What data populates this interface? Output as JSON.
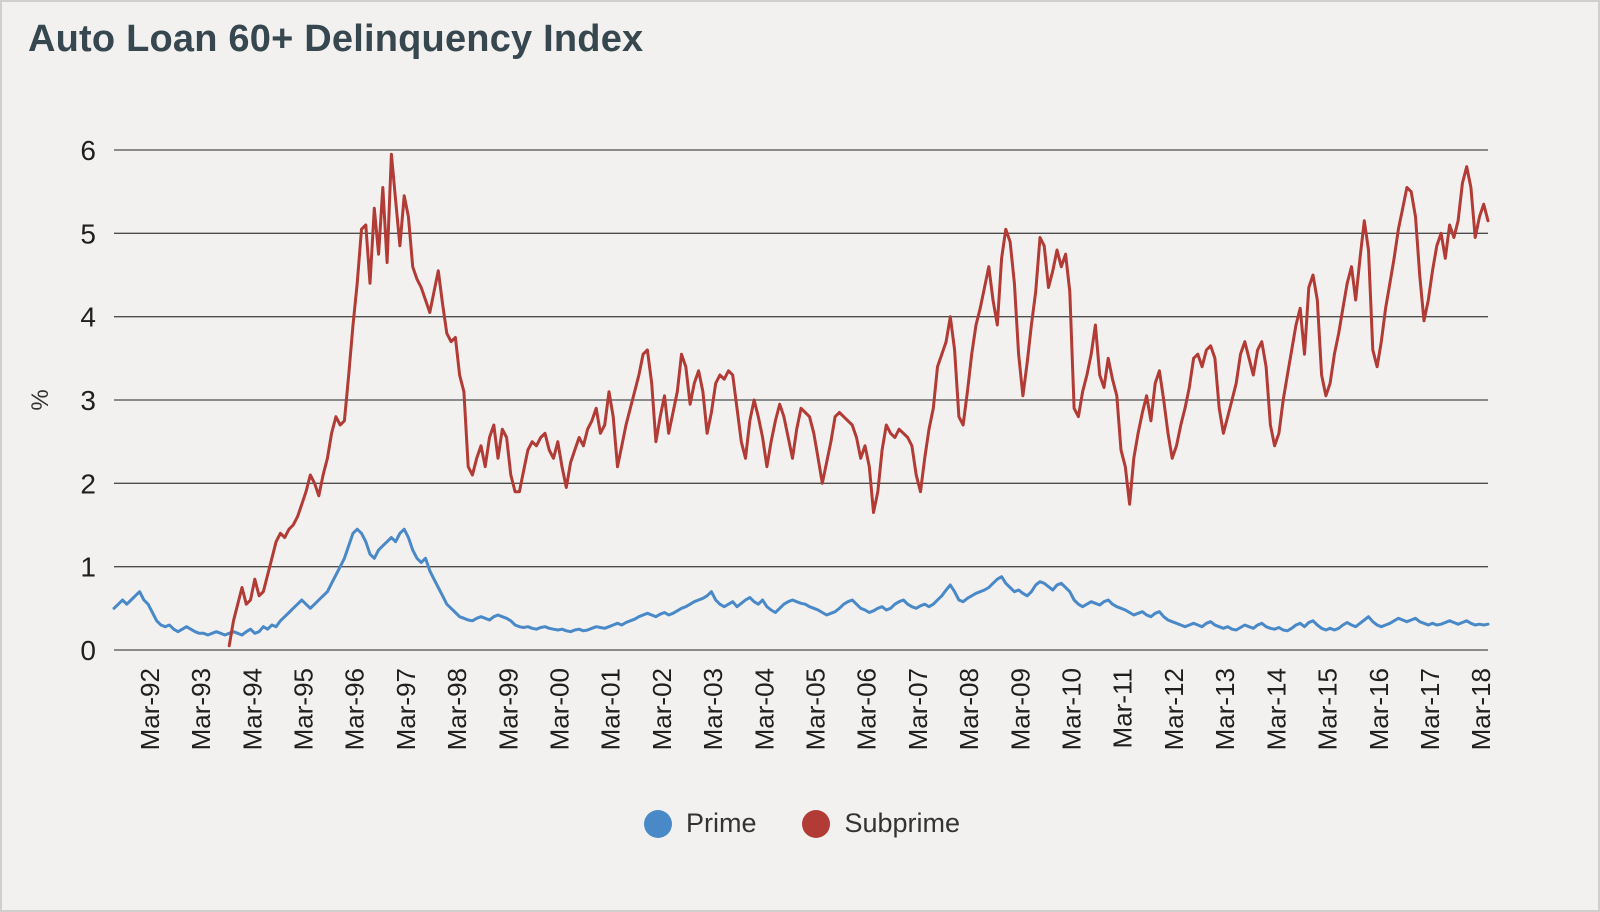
{
  "chart": {
    "title": "Auto Loan 60+ Delinquency Index",
    "ylabel": "%"
  },
  "colors": {
    "prime": "#4a89c8",
    "subprime": "#b23b35",
    "gridline": "#4d4d4d",
    "tick_text": "#1f1f1f",
    "background": "#f2f1ef"
  },
  "chart_data": {
    "type": "line",
    "title": "Auto Loan 60+ Delinquency Index",
    "xlabel": "",
    "ylabel": "%",
    "ylim": [
      0,
      6
    ],
    "y_ticks": [
      0,
      1,
      2,
      3,
      4,
      5,
      6
    ],
    "grid": "horizontal",
    "legend_position": "bottom",
    "x_tick_labels": [
      "Mar-92",
      "Mar-93",
      "Mar-94",
      "Mar-95",
      "Mar-96",
      "Mar-97",
      "Mar-98",
      "Mar-99",
      "Mar-00",
      "Mar-01",
      "Mar-02",
      "Mar-03",
      "Mar-04",
      "Mar-05",
      "Mar-06",
      "Mar-07",
      "Mar-08",
      "Mar-09",
      "Mar-10",
      "Mar-11",
      "Mar-12",
      "Mar-13",
      "Mar-14",
      "Mar-15",
      "Mar-16",
      "Mar-17",
      "Mar-18"
    ],
    "x_start": 1991.5,
    "x_step": 0.0833333,
    "series": [
      {
        "name": "Prime",
        "color": "#4a89c8",
        "values": [
          0.5,
          0.55,
          0.6,
          0.55,
          0.6,
          0.65,
          0.7,
          0.6,
          0.55,
          0.45,
          0.35,
          0.3,
          0.28,
          0.3,
          0.25,
          0.22,
          0.25,
          0.28,
          0.25,
          0.22,
          0.2,
          0.2,
          0.18,
          0.2,
          0.22,
          0.2,
          0.18,
          0.2,
          0.22,
          0.2,
          0.18,
          0.22,
          0.25,
          0.2,
          0.22,
          0.28,
          0.25,
          0.3,
          0.28,
          0.35,
          0.4,
          0.45,
          0.5,
          0.55,
          0.6,
          0.55,
          0.5,
          0.55,
          0.6,
          0.65,
          0.7,
          0.8,
          0.9,
          1.0,
          1.1,
          1.25,
          1.4,
          1.45,
          1.4,
          1.3,
          1.15,
          1.1,
          1.2,
          1.25,
          1.3,
          1.35,
          1.3,
          1.4,
          1.45,
          1.35,
          1.2,
          1.1,
          1.05,
          1.1,
          0.95,
          0.85,
          0.75,
          0.65,
          0.55,
          0.5,
          0.45,
          0.4,
          0.38,
          0.36,
          0.35,
          0.38,
          0.4,
          0.38,
          0.36,
          0.4,
          0.42,
          0.4,
          0.38,
          0.35,
          0.3,
          0.28,
          0.27,
          0.28,
          0.26,
          0.25,
          0.27,
          0.28,
          0.26,
          0.25,
          0.24,
          0.25,
          0.23,
          0.22,
          0.24,
          0.25,
          0.23,
          0.24,
          0.26,
          0.28,
          0.27,
          0.26,
          0.28,
          0.3,
          0.32,
          0.3,
          0.33,
          0.35,
          0.37,
          0.4,
          0.42,
          0.44,
          0.42,
          0.4,
          0.43,
          0.45,
          0.42,
          0.44,
          0.47,
          0.5,
          0.52,
          0.55,
          0.58,
          0.6,
          0.62,
          0.65,
          0.7,
          0.6,
          0.55,
          0.52,
          0.55,
          0.58,
          0.52,
          0.56,
          0.6,
          0.63,
          0.58,
          0.55,
          0.6,
          0.52,
          0.48,
          0.45,
          0.5,
          0.55,
          0.58,
          0.6,
          0.58,
          0.56,
          0.55,
          0.52,
          0.5,
          0.48,
          0.45,
          0.42,
          0.44,
          0.46,
          0.5,
          0.55,
          0.58,
          0.6,
          0.55,
          0.5,
          0.48,
          0.45,
          0.47,
          0.5,
          0.52,
          0.48,
          0.5,
          0.55,
          0.58,
          0.6,
          0.55,
          0.52,
          0.5,
          0.53,
          0.55,
          0.52,
          0.55,
          0.6,
          0.65,
          0.72,
          0.78,
          0.7,
          0.6,
          0.58,
          0.62,
          0.65,
          0.68,
          0.7,
          0.72,
          0.75,
          0.8,
          0.85,
          0.88,
          0.8,
          0.75,
          0.7,
          0.72,
          0.68,
          0.65,
          0.7,
          0.78,
          0.82,
          0.8,
          0.76,
          0.72,
          0.78,
          0.8,
          0.75,
          0.7,
          0.6,
          0.55,
          0.52,
          0.55,
          0.58,
          0.56,
          0.54,
          0.58,
          0.6,
          0.55,
          0.52,
          0.5,
          0.48,
          0.45,
          0.42,
          0.44,
          0.46,
          0.42,
          0.4,
          0.44,
          0.46,
          0.4,
          0.36,
          0.34,
          0.32,
          0.3,
          0.28,
          0.3,
          0.32,
          0.3,
          0.28,
          0.32,
          0.34,
          0.3,
          0.28,
          0.26,
          0.28,
          0.25,
          0.24,
          0.27,
          0.3,
          0.28,
          0.26,
          0.3,
          0.32,
          0.28,
          0.26,
          0.25,
          0.27,
          0.24,
          0.23,
          0.26,
          0.3,
          0.32,
          0.28,
          0.33,
          0.35,
          0.3,
          0.26,
          0.24,
          0.26,
          0.24,
          0.26,
          0.3,
          0.33,
          0.3,
          0.28,
          0.32,
          0.36,
          0.4,
          0.34,
          0.3,
          0.28,
          0.3,
          0.32,
          0.35,
          0.38,
          0.36,
          0.34,
          0.36,
          0.38,
          0.34,
          0.32,
          0.3,
          0.32,
          0.3,
          0.31,
          0.33,
          0.35,
          0.33,
          0.31,
          0.33,
          0.35,
          0.32,
          0.3,
          0.31,
          0.3,
          0.31
        ]
      },
      {
        "name": "Subprime",
        "color": "#b23b35",
        "values": [
          null,
          null,
          null,
          null,
          null,
          null,
          null,
          null,
          null,
          null,
          null,
          null,
          null,
          null,
          null,
          null,
          null,
          null,
          null,
          null,
          null,
          null,
          null,
          null,
          null,
          null,
          null,
          0.05,
          0.35,
          0.55,
          0.75,
          0.55,
          0.6,
          0.85,
          0.65,
          0.7,
          0.9,
          1.1,
          1.3,
          1.4,
          1.35,
          1.45,
          1.5,
          1.6,
          1.75,
          1.9,
          2.1,
          2.0,
          1.85,
          2.1,
          2.3,
          2.6,
          2.8,
          2.7,
          2.75,
          3.3,
          3.9,
          4.4,
          5.05,
          5.1,
          4.4,
          5.3,
          4.75,
          5.55,
          4.65,
          5.95,
          5.4,
          4.85,
          5.45,
          5.2,
          4.6,
          4.45,
          4.35,
          4.2,
          4.05,
          4.3,
          4.55,
          4.15,
          3.8,
          3.7,
          3.75,
          3.3,
          3.1,
          2.2,
          2.1,
          2.3,
          2.45,
          2.2,
          2.55,
          2.7,
          2.3,
          2.65,
          2.55,
          2.1,
          1.9,
          1.9,
          2.15,
          2.4,
          2.5,
          2.45,
          2.55,
          2.6,
          2.4,
          2.3,
          2.5,
          2.2,
          1.95,
          2.25,
          2.4,
          2.55,
          2.45,
          2.65,
          2.75,
          2.9,
          2.6,
          2.7,
          3.1,
          2.8,
          2.2,
          2.45,
          2.7,
          2.9,
          3.1,
          3.3,
          3.55,
          3.6,
          3.2,
          2.5,
          2.8,
          3.05,
          2.6,
          2.85,
          3.1,
          3.55,
          3.4,
          2.95,
          3.2,
          3.35,
          3.1,
          2.6,
          2.85,
          3.2,
          3.3,
          3.25,
          3.35,
          3.3,
          2.9,
          2.5,
          2.3,
          2.75,
          3.0,
          2.8,
          2.55,
          2.2,
          2.5,
          2.75,
          2.95,
          2.8,
          2.55,
          2.3,
          2.65,
          2.9,
          2.85,
          2.8,
          2.6,
          2.3,
          2.0,
          2.25,
          2.5,
          2.8,
          2.85,
          2.8,
          2.75,
          2.7,
          2.55,
          2.3,
          2.45,
          2.2,
          1.65,
          1.9,
          2.4,
          2.7,
          2.6,
          2.55,
          2.65,
          2.6,
          2.55,
          2.45,
          2.1,
          1.9,
          2.3,
          2.65,
          2.9,
          3.4,
          3.55,
          3.7,
          4.0,
          3.6,
          2.8,
          2.7,
          3.1,
          3.55,
          3.9,
          4.1,
          4.35,
          4.6,
          4.2,
          3.9,
          4.7,
          5.05,
          4.9,
          4.4,
          3.55,
          3.05,
          3.45,
          3.9,
          4.3,
          4.95,
          4.85,
          4.35,
          4.55,
          4.8,
          4.6,
          4.75,
          4.3,
          2.9,
          2.8,
          3.1,
          3.3,
          3.55,
          3.9,
          3.3,
          3.15,
          3.5,
          3.25,
          3.05,
          2.4,
          2.2,
          1.75,
          2.3,
          2.6,
          2.85,
          3.05,
          2.75,
          3.2,
          3.35,
          3.0,
          2.6,
          2.3,
          2.45,
          2.7,
          2.9,
          3.15,
          3.5,
          3.55,
          3.4,
          3.6,
          3.65,
          3.5,
          2.9,
          2.6,
          2.8,
          3.0,
          3.2,
          3.55,
          3.7,
          3.5,
          3.3,
          3.6,
          3.7,
          3.4,
          2.7,
          2.45,
          2.6,
          3.0,
          3.3,
          3.6,
          3.9,
          4.1,
          3.55,
          4.35,
          4.5,
          4.2,
          3.3,
          3.05,
          3.2,
          3.55,
          3.8,
          4.1,
          4.4,
          4.6,
          4.2,
          4.7,
          5.15,
          4.8,
          3.6,
          3.4,
          3.7,
          4.1,
          4.4,
          4.7,
          5.05,
          5.3,
          5.55,
          5.5,
          5.2,
          4.5,
          3.95,
          4.2,
          4.55,
          4.85,
          5.0,
          4.7,
          5.1,
          4.95,
          5.15,
          5.6,
          5.8,
          5.55,
          4.95,
          5.2,
          5.35,
          5.15
        ]
      }
    ]
  }
}
